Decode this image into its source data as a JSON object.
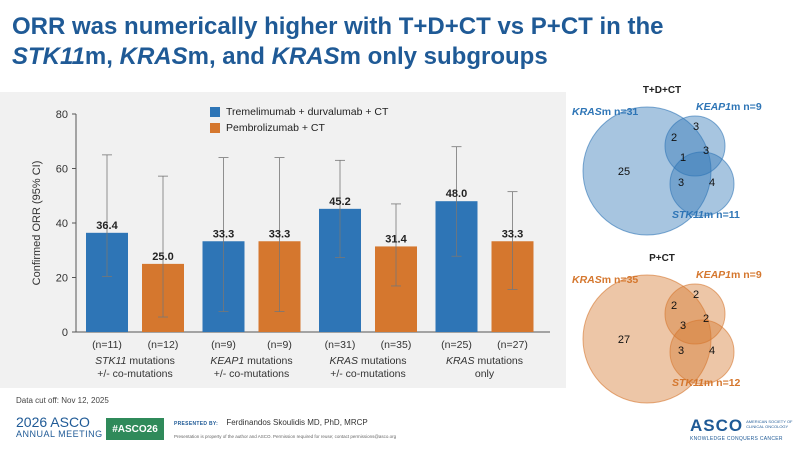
{
  "slide": {
    "title_parts": [
      {
        "text": "ORR was numerically higher with T+D+CT vs P+CT in the",
        "italic": false,
        "br": true
      },
      {
        "text": "STK11",
        "italic": true
      },
      {
        "text": "m, ",
        "italic": false
      },
      {
        "text": "KRAS",
        "italic": true
      },
      {
        "text": "m, and ",
        "italic": false
      },
      {
        "text": "KRAS",
        "italic": true
      },
      {
        "text": "m only subgroups",
        "italic": false
      }
    ],
    "data_cutoff": "Data cut off: Nov 12, 2025"
  },
  "colors": {
    "tdct": "#2e75b6",
    "pct": "#d5772e",
    "title": "#1f5a96",
    "panel_bg": "#f1f1f1"
  },
  "chart_data": {
    "type": "bar",
    "ylabel": "Confirmed ORR (95% CI)",
    "ylim": [
      0,
      80
    ],
    "yticks": [
      0,
      20,
      40,
      60,
      80
    ],
    "grid": false,
    "legend_position": "top",
    "series": [
      {
        "name": "Tremelimumab + durvalumab + CT",
        "color": "#2e75b6"
      },
      {
        "name": "Pembrolizumab + CT",
        "color": "#d5772e"
      }
    ],
    "groups": [
      {
        "label_lines": [
          {
            "text": "STK11",
            "italic": true,
            "rest": " mutations"
          },
          {
            "text": "+/- co-mutations"
          }
        ],
        "bars": [
          {
            "series": 0,
            "value": 36.4,
            "ci": [
              20.4,
              65.0
            ],
            "n": "(n=11)"
          },
          {
            "series": 1,
            "value": 25.0,
            "ci": [
              5.5,
              57.2
            ],
            "n": "(n=12)"
          }
        ]
      },
      {
        "label_lines": [
          {
            "text": "KEAP1",
            "italic": true,
            "rest": " mutations"
          },
          {
            "text": "+/- co-mutations"
          }
        ],
        "bars": [
          {
            "series": 0,
            "value": 33.3,
            "ci": [
              7.5,
              64.0
            ],
            "n": "(n=9)"
          },
          {
            "series": 1,
            "value": 33.3,
            "ci": [
              7.5,
              64.0
            ],
            "n": "(n=9)"
          }
        ]
      },
      {
        "label_lines": [
          {
            "text": "KRAS",
            "italic": true,
            "rest": " mutations"
          },
          {
            "text": "+/- co-mutations"
          }
        ],
        "bars": [
          {
            "series": 0,
            "value": 45.2,
            "ci": [
              27.3,
              63.0
            ],
            "n": "(n=31)"
          },
          {
            "series": 1,
            "value": 31.4,
            "ci": [
              16.9,
              47.0
            ],
            "n": "(n=35)"
          }
        ]
      },
      {
        "label_lines": [
          {
            "text": "KRAS",
            "italic": true,
            "rest": " mutations"
          },
          {
            "text": "only"
          }
        ],
        "bars": [
          {
            "series": 0,
            "value": 48.0,
            "ci": [
              27.8,
              68.0
            ],
            "n": "(n=25)"
          },
          {
            "series": 1,
            "value": 33.3,
            "ci": [
              15.6,
              51.5
            ],
            "n": "(n=27)"
          }
        ]
      }
    ]
  },
  "venn": [
    {
      "title": "T+D+CT",
      "color": "#2e75b6",
      "labels": {
        "kras": {
          "gene": "KRAS",
          "suffix": "m n=31"
        },
        "keap1": {
          "gene": "KEAP1",
          "suffix": "m n=9"
        },
        "stk11": {
          "gene": "STK11",
          "suffix": "m n=11"
        }
      },
      "regions": {
        "kras_only": "25",
        "kras_keap1": "2",
        "keap1_only": "3",
        "all_three": "1",
        "keap1_stk11": "3",
        "kras_stk11": "3",
        "stk11_only": "4"
      }
    },
    {
      "title": "P+CT",
      "color": "#d5772e",
      "labels": {
        "kras": {
          "gene": "KRAS",
          "suffix": "m n=35"
        },
        "keap1": {
          "gene": "KEAP1",
          "suffix": "m n=9"
        },
        "stk11": {
          "gene": "STK11",
          "suffix": "m n=12"
        }
      },
      "regions": {
        "kras_only": "27",
        "kras_keap1": "2",
        "keap1_only": "2",
        "all_three": "3",
        "keap1_stk11": "2",
        "kras_stk11": "3",
        "stk11_only": "4"
      }
    }
  ],
  "footer": {
    "meeting_year": "2026 ASCO",
    "meeting_sub": "ANNUAL MEETING",
    "hashtag": "#ASCO26",
    "presented_by_label": "PRESENTED BY:",
    "presenter": "Ferdinandos Skoulidis MD, PhD, MRCP",
    "disclaimer": "Presentation is property of the author and ASCO. Permission required for reuse; contact permissions@asco.org",
    "logo_text": "ASCO",
    "logo_small": "AMERICAN SOCIETY OF CLINICAL ONCOLOGY",
    "logo_tag": "KNOWLEDGE CONQUERS CANCER"
  }
}
